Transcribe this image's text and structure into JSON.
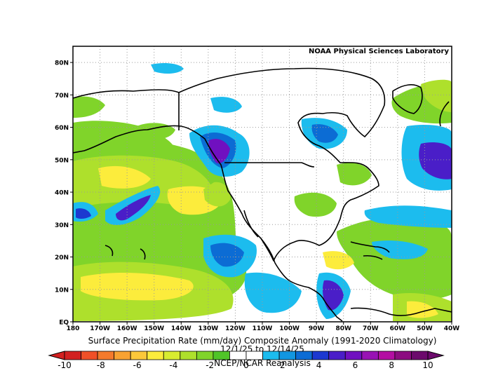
{
  "map": {
    "credit": "NOAA Physical Sciences Laboratory",
    "lat_ticks": [
      {
        "lat": 80,
        "label": "80N"
      },
      {
        "lat": 70,
        "label": "70N"
      },
      {
        "lat": 60,
        "label": "60N"
      },
      {
        "lat": 50,
        "label": "50N"
      },
      {
        "lat": 40,
        "label": "40N"
      },
      {
        "lat": 30,
        "label": "30N"
      },
      {
        "lat": 20,
        "label": "20N"
      },
      {
        "lat": 10,
        "label": "10N"
      },
      {
        "lat": 0,
        "label": "EQ"
      }
    ],
    "lon_ticks": [
      {
        "lon": -180,
        "label": "180"
      },
      {
        "lon": -170,
        "label": "170W"
      },
      {
        "lon": -160,
        "label": "160W"
      },
      {
        "lon": -150,
        "label": "150W"
      },
      {
        "lon": -140,
        "label": "140W"
      },
      {
        "lon": -130,
        "label": "130W"
      },
      {
        "lon": -120,
        "label": "120W"
      },
      {
        "lon": -110,
        "label": "110W"
      },
      {
        "lon": -100,
        "label": "100W"
      },
      {
        "lon": -90,
        "label": "90W"
      },
      {
        "lon": -80,
        "label": "80W"
      },
      {
        "lon": -70,
        "label": "70W"
      },
      {
        "lon": -60,
        "label": "60W"
      },
      {
        "lon": -50,
        "label": "50W"
      },
      {
        "lon": -40,
        "label": "40W"
      }
    ],
    "extent": {
      "lon_min": -180,
      "lon_max": -40,
      "lat_min": 0,
      "lat_max": 85
    },
    "title_line1": "Surface Precipitation Rate (mm/day) Composite Anomaly (1991-2020 Climatology)",
    "title_line2": "12/1/25 to 12/14/25",
    "dataset": "NCEP/NCAR Reanalysis"
  },
  "colorbar": {
    "labels": [
      {
        "value": -10,
        "text": "-10"
      },
      {
        "value": -8,
        "text": "-8"
      },
      {
        "value": -6,
        "text": "-6"
      },
      {
        "value": -4,
        "text": "-4"
      },
      {
        "value": -2,
        "text": "-2"
      },
      {
        "value": 0,
        "text": "0"
      },
      {
        "value": 2,
        "text": "2"
      },
      {
        "value": 4,
        "text": "4"
      },
      {
        "value": 6,
        "text": "6"
      },
      {
        "value": 8,
        "text": "8"
      },
      {
        "value": 10,
        "text": "10"
      }
    ],
    "colors": [
      "#d22020",
      "#f05028",
      "#f47a2c",
      "#f8a232",
      "#fcc83a",
      "#fcec3c",
      "#d8ec30",
      "#aee02c",
      "#80d42a",
      "#50c428",
      "#ffffff",
      "#ffffff",
      "#1cbcee",
      "#1296e0",
      "#0c6cd4",
      "#1c38d0",
      "#4a1ec8",
      "#7010c0",
      "#9812b4",
      "#b40ea2",
      "#8c0c80",
      "#6c0a6c"
    ]
  },
  "palette": {
    "dry_strong": "#fcec3c",
    "dry_mid": "#aee02c",
    "dry_light": "#50c428",
    "wet_light": "#1cbcee",
    "wet_mid": "#0c6cd4",
    "wet_strong": "#7010c0"
  }
}
